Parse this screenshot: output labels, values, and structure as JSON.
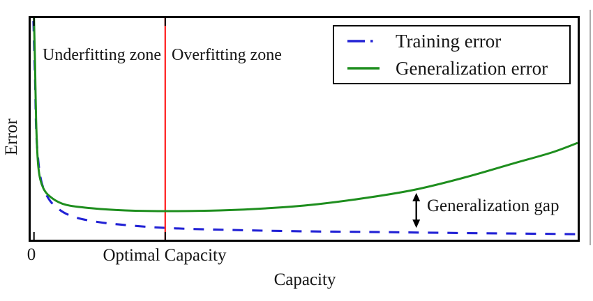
{
  "figure": {
    "ylabel": "Error",
    "xlabel": "Capacity",
    "zones": {
      "underfitting": "Underfitting zone",
      "overfitting": "Overfitting zone"
    }
  },
  "legend": {
    "position": "upper right",
    "items": [
      {
        "label": "Training error"
      },
      {
        "label": "Generalization error"
      }
    ]
  },
  "colors": {
    "training_error": "#2222d5",
    "generalization_error": "#1e8e1e",
    "optimal_capacity_line": "#ff2d2d",
    "axis": "#000000"
  },
  "chart_data": {
    "type": "line",
    "title": "",
    "xlabel": "Capacity",
    "ylabel": "Error",
    "grid": false,
    "legend_position": "upper right",
    "x_axis": {
      "range_normalized": [
        0,
        1
      ],
      "ticks": [
        {
          "label": "0",
          "x": 0.006
        },
        {
          "label": "Optimal Capacity",
          "x": 0.246
        }
      ]
    },
    "y_axis": {
      "range_normalized": [
        0,
        1
      ],
      "ticks": []
    },
    "series": [
      {
        "name": "Training error",
        "style": "dashed",
        "color": "#2222d5",
        "points": [
          [
            0.005,
            0.987
          ],
          [
            0.008,
            0.72
          ],
          [
            0.01,
            0.5
          ],
          [
            0.014,
            0.352
          ],
          [
            0.02,
            0.258
          ],
          [
            0.031,
            0.192
          ],
          [
            0.046,
            0.148
          ],
          [
            0.071,
            0.11
          ],
          [
            0.11,
            0.085
          ],
          [
            0.161,
            0.069
          ],
          [
            0.246,
            0.053
          ],
          [
            0.365,
            0.044
          ],
          [
            0.492,
            0.038
          ],
          [
            0.62,
            0.035
          ],
          [
            0.747,
            0.031
          ],
          [
            0.875,
            0.028
          ],
          [
            1.0,
            0.025
          ]
        ]
      },
      {
        "name": "Generalization error",
        "style": "solid",
        "color": "#1e8e1e",
        "points": [
          [
            0.006,
            1.0
          ],
          [
            0.008,
            0.783
          ],
          [
            0.01,
            0.531
          ],
          [
            0.014,
            0.327
          ],
          [
            0.023,
            0.233
          ],
          [
            0.04,
            0.186
          ],
          [
            0.065,
            0.157
          ],
          [
            0.11,
            0.142
          ],
          [
            0.173,
            0.132
          ],
          [
            0.256,
            0.129
          ],
          [
            0.346,
            0.132
          ],
          [
            0.435,
            0.142
          ],
          [
            0.524,
            0.16
          ],
          [
            0.614,
            0.189
          ],
          [
            0.703,
            0.226
          ],
          [
            0.792,
            0.28
          ],
          [
            0.881,
            0.343
          ],
          [
            0.952,
            0.393
          ],
          [
            1.0,
            0.437
          ]
        ]
      }
    ],
    "annotations": {
      "optimal_capacity_line": {
        "x": 0.246,
        "color": "#ff2d2d",
        "label": "Optimal Capacity"
      },
      "generalization_gap_arrow": {
        "x": 0.705,
        "y_bottom": 0.053,
        "y_top": 0.211,
        "label": "Generalization gap"
      },
      "zones": [
        {
          "label": "Underfitting zone",
          "x_range": [
            0,
            0.246
          ]
        },
        {
          "label": "Overfitting zone",
          "x_range": [
            0.246,
            1
          ]
        }
      ]
    }
  }
}
